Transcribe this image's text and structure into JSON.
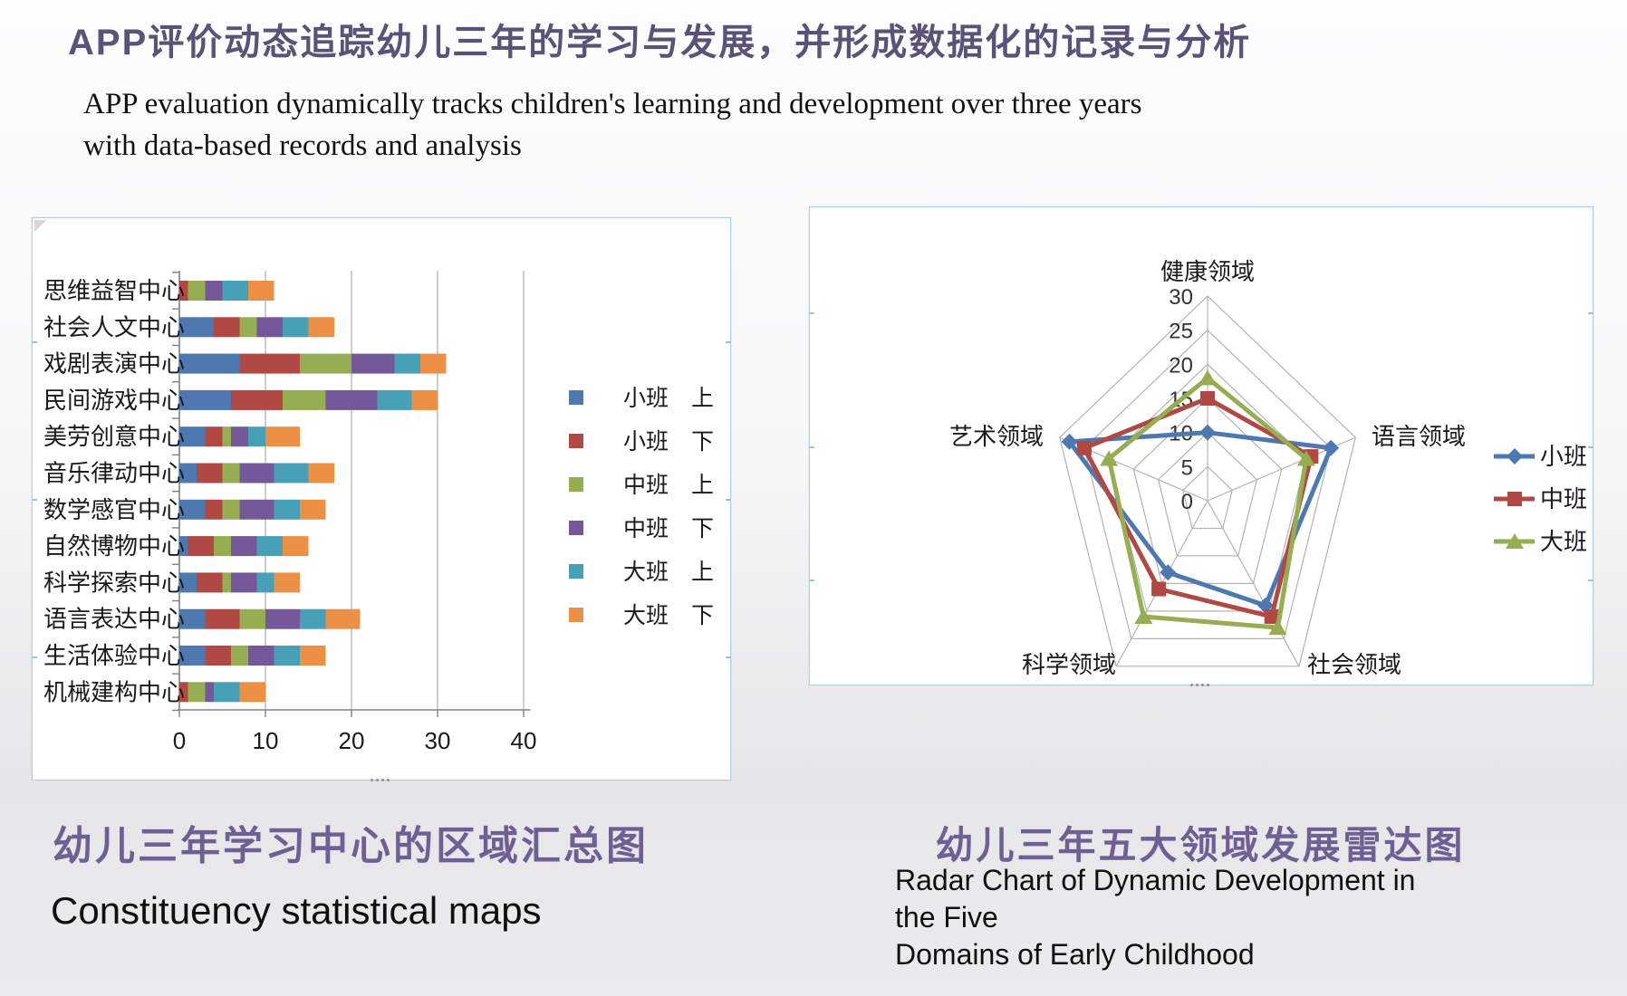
{
  "slide": {
    "title": "APP评价动态追踪幼儿三年的学习与发展，并形成数据化的记录与分析",
    "subtitle_lines": [
      "APP evaluation dynamically tracks children's learning and development over three years",
      "with data-based records and analysis"
    ]
  },
  "captions": {
    "left_zh": "幼儿三年学习中心的区域汇总图",
    "left_en": "Constituency statistical maps",
    "right_zh": "幼儿三年五大领域发展雷达图",
    "right_en_line1": "Radar Chart of Dynamic Development in the Five",
    "right_en_line2": "Domains of Early Childhood"
  },
  "colors": {
    "title_purple": "#5b5278",
    "caption_purple": "#6e6094",
    "grid_gray": "#b3b3b3",
    "axis_gray": "#808080"
  },
  "chart_data": [
    {
      "type": "bar",
      "orientation": "horizontal",
      "stacked": true,
      "title": "",
      "xlabel": "",
      "ylabel": "",
      "xlim": [
        0,
        40
      ],
      "xticks": [
        0,
        10,
        20,
        30,
        40
      ],
      "grid": true,
      "legend_position": "right",
      "categories": [
        "思维益智中心",
        "社会人文中心",
        "戏剧表演中心",
        "民间游戏中心",
        "美劳创意中心",
        "音乐律动中心",
        "数学感官中心",
        "自然博物中心",
        "科学探索中心",
        "语言表达中心",
        "生活体验中心",
        "机械建构中心"
      ],
      "series": [
        {
          "name": "小班　上",
          "color": "#4d79b0",
          "values": [
            0,
            4,
            7,
            6,
            3,
            2,
            3,
            1,
            2,
            3,
            3,
            0
          ]
        },
        {
          "name": "小班　下",
          "color": "#b04843",
          "values": [
            1,
            3,
            7,
            6,
            2,
            3,
            2,
            3,
            3,
            4,
            3,
            1
          ]
        },
        {
          "name": "中班　上",
          "color": "#96ad52",
          "values": [
            2,
            2,
            6,
            5,
            1,
            2,
            2,
            2,
            1,
            3,
            2,
            2
          ]
        },
        {
          "name": "中班　下",
          "color": "#74589a",
          "values": [
            2,
            3,
            5,
            6,
            2,
            4,
            4,
            3,
            3,
            4,
            3,
            1
          ]
        },
        {
          "name": "大班　上",
          "color": "#47a0b5",
          "values": [
            3,
            3,
            3,
            4,
            2,
            4,
            3,
            3,
            2,
            3,
            3,
            3
          ]
        },
        {
          "name": "大班　下",
          "color": "#ec9045",
          "values": [
            3,
            3,
            3,
            3,
            4,
            3,
            3,
            3,
            3,
            4,
            3,
            3
          ]
        }
      ]
    },
    {
      "type": "radar",
      "title": "",
      "rmax": 30,
      "rticks": [
        0,
        5,
        10,
        15,
        20,
        25,
        30
      ],
      "grid": true,
      "legend_position": "right",
      "categories": [
        "健康领域",
        "语言领域",
        "社会领域",
        "科学领域",
        "艺术领域"
      ],
      "series": [
        {
          "name": "小班",
          "color": "#4d79b0",
          "marker": "diamond",
          "values": [
            10,
            25,
            19,
            13,
            28
          ]
        },
        {
          "name": "中班",
          "color": "#b04843",
          "marker": "square",
          "values": [
            15,
            21,
            21,
            16,
            25
          ]
        },
        {
          "name": "大班",
          "color": "#96ad52",
          "marker": "triangle",
          "values": [
            18,
            20,
            23,
            21,
            20
          ]
        }
      ]
    }
  ]
}
